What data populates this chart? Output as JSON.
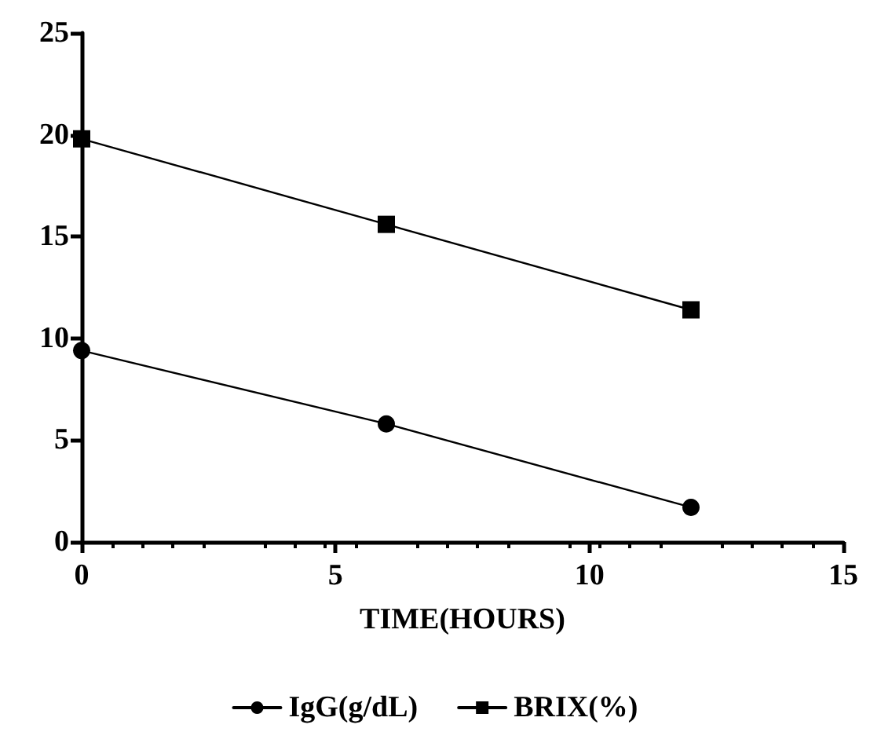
{
  "chart_data": {
    "type": "line",
    "xlabel": "TIME(HOURS)",
    "x": [
      0,
      6,
      12
    ],
    "series": [
      {
        "name": "IgG(g/dL)",
        "color": "#000000",
        "marker": "circle",
        "values": [
          9.4,
          5.8,
          1.7
        ]
      },
      {
        "name": "BRIX(%)",
        "color": "#000000",
        "marker": "square",
        "values": [
          19.8,
          15.6,
          11.4
        ]
      }
    ],
    "xlim": [
      0,
      15
    ],
    "xticks": [
      0,
      5,
      10,
      15
    ],
    "ylim": [
      0,
      25
    ],
    "yticks": [
      0,
      5,
      10,
      15,
      20,
      25
    ],
    "grid": false,
    "legend": "bottom",
    "line_style": "solid"
  }
}
